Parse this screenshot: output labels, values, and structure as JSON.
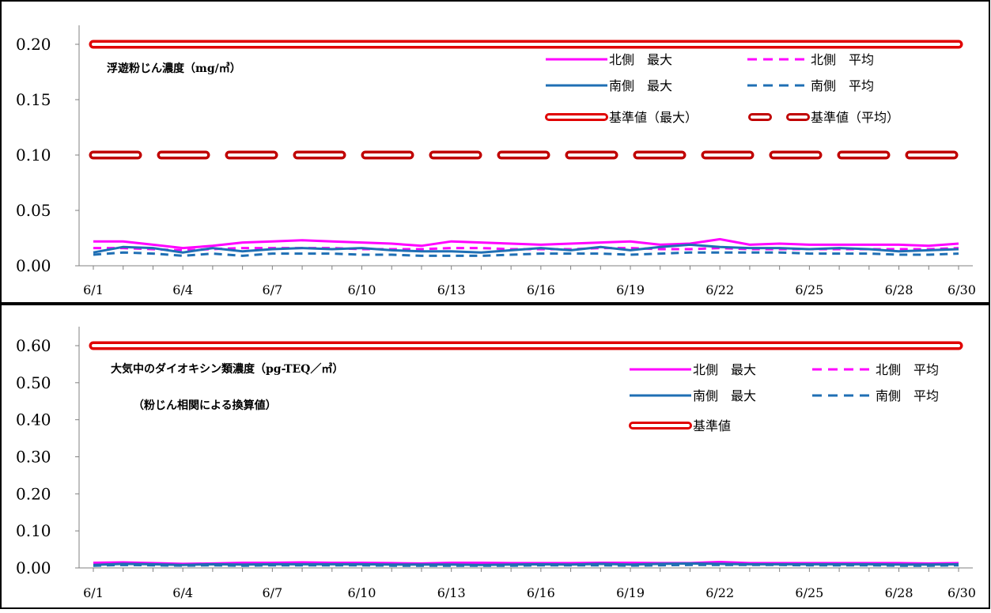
{
  "colors": {
    "north": "#ff00ff",
    "south": "#1f6fb4",
    "standard_fill": "#ffffff",
    "standard_edge": "#e00000",
    "standard_avg_edge": "#c00000"
  },
  "chart_data": [
    {
      "type": "line",
      "title": "浮遊粉じん濃度（mg/㎥）",
      "subtitle": "",
      "ylim": [
        0,
        0.2
      ],
      "yticks": [
        "0.00",
        "0.05",
        "0.10",
        "0.15",
        "0.20"
      ],
      "ytick_values": [
        0,
        0.05,
        0.1,
        0.15,
        0.2
      ],
      "xticks": [
        "6/1",
        "6/4",
        "6/7",
        "6/10",
        "6/13",
        "6/16",
        "6/19",
        "6/22",
        "6/25",
        "6/28",
        "6/30"
      ],
      "xtick_days": [
        1,
        4,
        7,
        10,
        13,
        16,
        19,
        22,
        25,
        28,
        30
      ],
      "x_days": [
        1,
        2,
        3,
        4,
        5,
        6,
        7,
        8,
        9,
        10,
        11,
        12,
        13,
        14,
        15,
        16,
        17,
        18,
        19,
        20,
        21,
        22,
        23,
        24,
        25,
        26,
        27,
        28,
        29,
        30
      ],
      "legend_position": "top-right",
      "grid": false,
      "series": [
        {
          "name": "北側　最大",
          "style": "solid",
          "color_key": "north",
          "values": [
            0.022,
            0.022,
            0.019,
            0.016,
            0.018,
            0.021,
            0.022,
            0.023,
            0.022,
            0.021,
            0.02,
            0.018,
            0.022,
            0.021,
            0.02,
            0.019,
            0.02,
            0.021,
            0.022,
            0.019,
            0.02,
            0.024,
            0.019,
            0.02,
            0.019,
            0.019,
            0.019,
            0.019,
            0.018,
            0.02
          ]
        },
        {
          "name": "北側　平均",
          "style": "dashed",
          "color_key": "north",
          "values": [
            0.016,
            0.016,
            0.015,
            0.014,
            0.015,
            0.016,
            0.016,
            0.016,
            0.016,
            0.015,
            0.015,
            0.015,
            0.016,
            0.016,
            0.015,
            0.015,
            0.015,
            0.016,
            0.016,
            0.015,
            0.015,
            0.016,
            0.015,
            0.015,
            0.015,
            0.015,
            0.015,
            0.015,
            0.015,
            0.016
          ]
        },
        {
          "name": "南側　最大",
          "style": "solid",
          "color_key": "south",
          "values": [
            0.012,
            0.017,
            0.016,
            0.012,
            0.016,
            0.013,
            0.015,
            0.016,
            0.015,
            0.016,
            0.014,
            0.013,
            0.013,
            0.012,
            0.014,
            0.016,
            0.014,
            0.017,
            0.014,
            0.017,
            0.019,
            0.017,
            0.016,
            0.016,
            0.015,
            0.016,
            0.015,
            0.013,
            0.014,
            0.015
          ]
        },
        {
          "name": "南側　平均",
          "style": "dashed",
          "color_key": "south",
          "values": [
            0.01,
            0.012,
            0.011,
            0.009,
            0.011,
            0.009,
            0.011,
            0.011,
            0.011,
            0.01,
            0.01,
            0.009,
            0.009,
            0.009,
            0.01,
            0.011,
            0.011,
            0.011,
            0.01,
            0.011,
            0.012,
            0.012,
            0.012,
            0.012,
            0.011,
            0.011,
            0.011,
            0.01,
            0.01,
            0.011
          ]
        },
        {
          "name": "基準値（最大）",
          "style": "double",
          "color_key": "standard_edge",
          "values": [
            0.2,
            0.2,
            0.2,
            0.2,
            0.2,
            0.2,
            0.2,
            0.2,
            0.2,
            0.2,
            0.2,
            0.2,
            0.2,
            0.2,
            0.2,
            0.2,
            0.2,
            0.2,
            0.2,
            0.2,
            0.2,
            0.2,
            0.2,
            0.2,
            0.2,
            0.2,
            0.2,
            0.2,
            0.2,
            0.2
          ]
        },
        {
          "name": "基準値（平均）",
          "style": "double-dashed",
          "color_key": "standard_avg_edge",
          "values": [
            0.1,
            0.1,
            0.1,
            0.1,
            0.1,
            0.1,
            0.1,
            0.1,
            0.1,
            0.1,
            0.1,
            0.1,
            0.1,
            0.1,
            0.1,
            0.1,
            0.1,
            0.1,
            0.1,
            0.1,
            0.1,
            0.1,
            0.1,
            0.1,
            0.1,
            0.1,
            0.1,
            0.1,
            0.1,
            0.1
          ]
        }
      ]
    },
    {
      "type": "line",
      "title": "大気中のダイオキシン類濃度（pg-TEQ／㎥）",
      "subtitle": "（粉じん相関による換算値）",
      "ylim": [
        0,
        0.6
      ],
      "yticks": [
        "0.00",
        "0.10",
        "0.20",
        "0.30",
        "0.40",
        "0.50",
        "0.60"
      ],
      "ytick_values": [
        0,
        0.1,
        0.2,
        0.3,
        0.4,
        0.5,
        0.6
      ],
      "xticks": [
        "6/1",
        "6/4",
        "6/7",
        "6/10",
        "6/13",
        "6/16",
        "6/19",
        "6/22",
        "6/25",
        "6/28",
        "6/30"
      ],
      "xtick_days": [
        1,
        4,
        7,
        10,
        13,
        16,
        19,
        22,
        25,
        28,
        30
      ],
      "x_days": [
        1,
        2,
        3,
        4,
        5,
        6,
        7,
        8,
        9,
        10,
        11,
        12,
        13,
        14,
        15,
        16,
        17,
        18,
        19,
        20,
        21,
        22,
        23,
        24,
        25,
        26,
        27,
        28,
        29,
        30
      ],
      "legend_position": "top-right",
      "grid": false,
      "series": [
        {
          "name": "北側　最大",
          "style": "solid",
          "color_key": "north",
          "values": [
            0.014,
            0.015,
            0.013,
            0.011,
            0.012,
            0.014,
            0.014,
            0.015,
            0.014,
            0.014,
            0.013,
            0.012,
            0.014,
            0.014,
            0.013,
            0.013,
            0.013,
            0.014,
            0.014,
            0.013,
            0.013,
            0.016,
            0.013,
            0.013,
            0.013,
            0.013,
            0.013,
            0.013,
            0.012,
            0.013
          ]
        },
        {
          "name": "北側　平均",
          "style": "dashed",
          "color_key": "north",
          "values": [
            0.01,
            0.01,
            0.01,
            0.009,
            0.01,
            0.01,
            0.01,
            0.01,
            0.01,
            0.01,
            0.01,
            0.01,
            0.01,
            0.01,
            0.01,
            0.01,
            0.01,
            0.01,
            0.01,
            0.01,
            0.01,
            0.01,
            0.01,
            0.01,
            0.01,
            0.01,
            0.01,
            0.01,
            0.01,
            0.01
          ]
        },
        {
          "name": "南側　最大",
          "style": "solid",
          "color_key": "south",
          "values": [
            0.008,
            0.011,
            0.01,
            0.008,
            0.01,
            0.009,
            0.01,
            0.01,
            0.01,
            0.01,
            0.009,
            0.009,
            0.009,
            0.008,
            0.009,
            0.01,
            0.009,
            0.011,
            0.009,
            0.011,
            0.012,
            0.011,
            0.01,
            0.01,
            0.01,
            0.01,
            0.01,
            0.009,
            0.009,
            0.01
          ]
        },
        {
          "name": "南側　平均",
          "style": "dashed",
          "color_key": "south",
          "values": [
            0.006,
            0.008,
            0.007,
            0.006,
            0.007,
            0.006,
            0.007,
            0.007,
            0.007,
            0.007,
            0.006,
            0.006,
            0.006,
            0.006,
            0.006,
            0.007,
            0.007,
            0.007,
            0.006,
            0.007,
            0.008,
            0.008,
            0.008,
            0.008,
            0.007,
            0.007,
            0.007,
            0.006,
            0.006,
            0.007
          ]
        },
        {
          "name": "基準値",
          "style": "double",
          "color_key": "standard_edge",
          "values": [
            0.6,
            0.6,
            0.6,
            0.6,
            0.6,
            0.6,
            0.6,
            0.6,
            0.6,
            0.6,
            0.6,
            0.6,
            0.6,
            0.6,
            0.6,
            0.6,
            0.6,
            0.6,
            0.6,
            0.6,
            0.6,
            0.6,
            0.6,
            0.6,
            0.6,
            0.6,
            0.6,
            0.6,
            0.6,
            0.6
          ]
        }
      ]
    }
  ]
}
